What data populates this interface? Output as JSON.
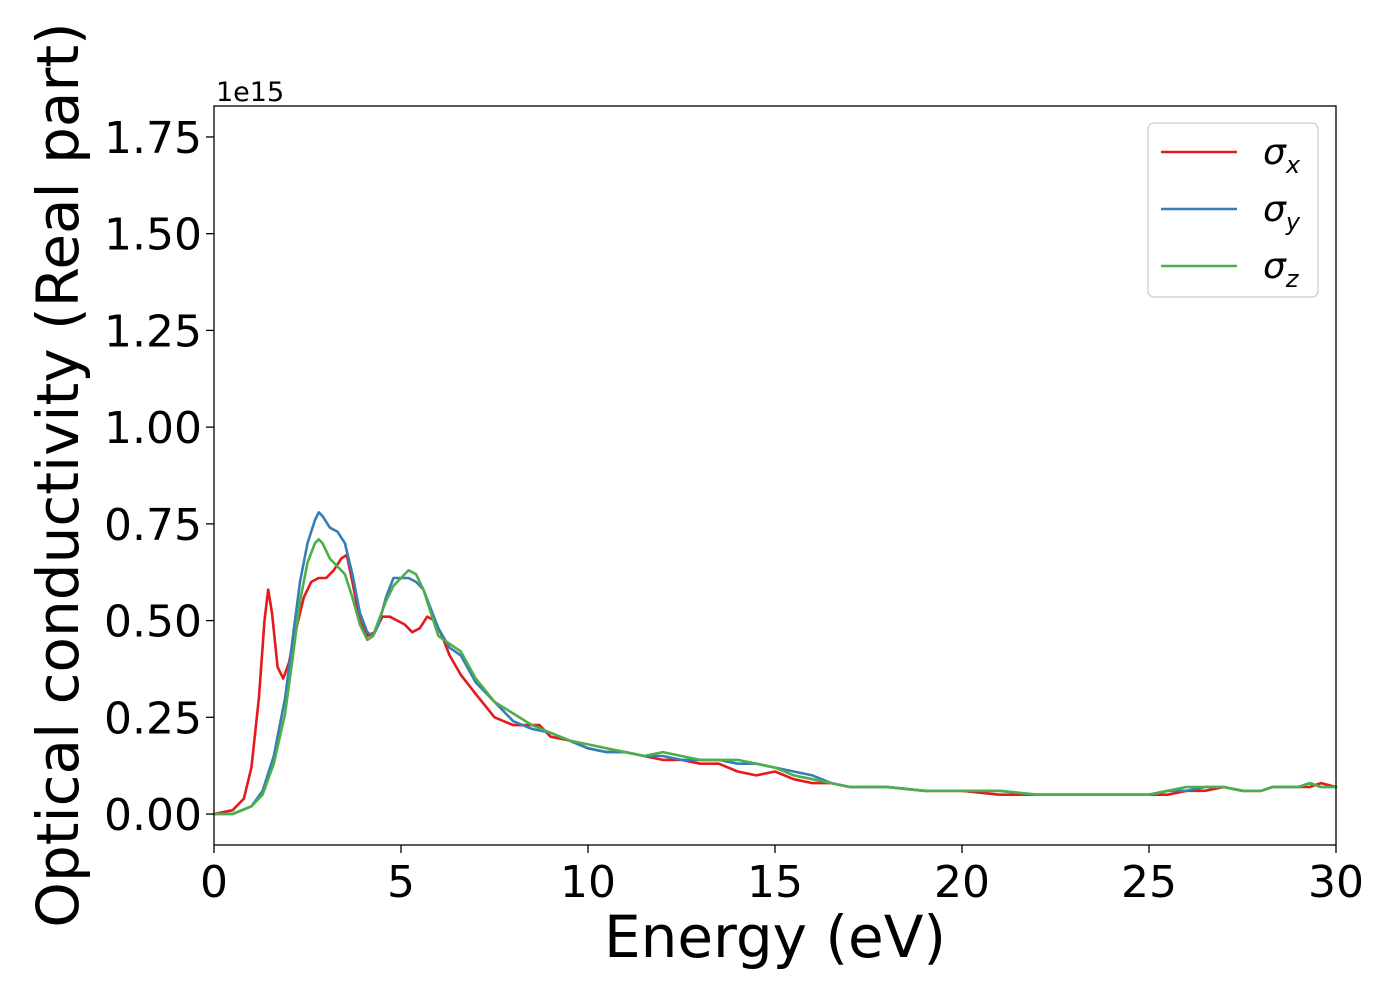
{
  "chart_data": {
    "type": "line",
    "xlabel": "Energy (eV)",
    "ylabel": "Optical conductivity (Real part)",
    "y_offset_text": "1e15",
    "xlim": [
      0,
      30
    ],
    "ylim": [
      -0.08,
      1.83
    ],
    "x_ticks": [
      0,
      5,
      10,
      15,
      20,
      25,
      30
    ],
    "x_tick_labels": [
      "0",
      "5",
      "10",
      "15",
      "20",
      "25",
      "30"
    ],
    "y_ticks": [
      0.0,
      0.25,
      0.5,
      0.75,
      1.0,
      1.25,
      1.5,
      1.75
    ],
    "y_tick_labels": [
      "0.00",
      "0.25",
      "0.50",
      "0.75",
      "1.00",
      "1.25",
      "1.50",
      "1.75"
    ],
    "grid": false,
    "legend_position": "top-right",
    "series": [
      {
        "name": "σx",
        "symbol": "σ",
        "subscript": "x",
        "color": "#e41a1c",
        "x": [
          0,
          0.5,
          0.8,
          1.0,
          1.2,
          1.35,
          1.45,
          1.55,
          1.7,
          1.85,
          2.0,
          2.2,
          2.4,
          2.6,
          2.8,
          3.0,
          3.2,
          3.4,
          3.55,
          3.7,
          3.9,
          4.1,
          4.3,
          4.5,
          4.7,
          4.9,
          5.1,
          5.3,
          5.5,
          5.7,
          5.9,
          6.1,
          6.3,
          6.6,
          7.0,
          7.5,
          8.0,
          8.4,
          8.7,
          9.0,
          9.5,
          10.0,
          10.5,
          11.0,
          11.5,
          12.0,
          12.5,
          13.0,
          13.5,
          14.0,
          14.5,
          15.0,
          15.5,
          16.0,
          16.5,
          17.0,
          18.0,
          19.0,
          20.0,
          21.0,
          22.0,
          23.0,
          24.0,
          24.5,
          25.0,
          25.5,
          26.0,
          26.5,
          27.0,
          27.5,
          28.0,
          28.3,
          28.6,
          29.0,
          29.3,
          29.6,
          30.0
        ],
        "values": [
          0.0,
          0.01,
          0.04,
          0.12,
          0.3,
          0.5,
          0.58,
          0.52,
          0.38,
          0.35,
          0.39,
          0.48,
          0.56,
          0.6,
          0.61,
          0.61,
          0.63,
          0.66,
          0.67,
          0.6,
          0.5,
          0.46,
          0.47,
          0.51,
          0.51,
          0.5,
          0.49,
          0.47,
          0.48,
          0.51,
          0.5,
          0.46,
          0.41,
          0.36,
          0.31,
          0.25,
          0.23,
          0.23,
          0.23,
          0.2,
          0.19,
          0.17,
          0.16,
          0.16,
          0.15,
          0.14,
          0.14,
          0.13,
          0.13,
          0.11,
          0.1,
          0.11,
          0.09,
          0.08,
          0.08,
          0.07,
          0.07,
          0.06,
          0.06,
          0.05,
          0.05,
          0.05,
          0.05,
          0.05,
          0.05,
          0.05,
          0.06,
          0.06,
          0.07,
          0.06,
          0.06,
          0.07,
          0.07,
          0.07,
          0.07,
          0.08,
          0.07
        ]
      },
      {
        "name": "σy",
        "symbol": "σ",
        "subscript": "y",
        "color": "#377eb8",
        "x": [
          0,
          0.5,
          1.0,
          1.3,
          1.6,
          1.9,
          2.1,
          2.3,
          2.5,
          2.7,
          2.8,
          2.9,
          3.1,
          3.3,
          3.5,
          3.7,
          3.9,
          4.1,
          4.25,
          4.4,
          4.6,
          4.8,
          5.0,
          5.2,
          5.4,
          5.6,
          5.8,
          6.0,
          6.3,
          6.6,
          7.0,
          7.5,
          8.0,
          8.5,
          9.0,
          9.5,
          10.0,
          10.5,
          11.0,
          11.5,
          12.0,
          12.5,
          13.0,
          13.5,
          14.0,
          14.5,
          15.0,
          15.5,
          16.0,
          16.5,
          17.0,
          18.0,
          19.0,
          20.0,
          21.0,
          22.0,
          23.0,
          24.0,
          24.5,
          25.0,
          25.5,
          26.0,
          26.5,
          27.0,
          27.5,
          28.0,
          28.3,
          28.6,
          29.0,
          29.3,
          29.6,
          30.0
        ],
        "values": [
          0.0,
          0.0,
          0.02,
          0.06,
          0.15,
          0.3,
          0.45,
          0.6,
          0.7,
          0.76,
          0.78,
          0.77,
          0.74,
          0.73,
          0.7,
          0.62,
          0.52,
          0.47,
          0.46,
          0.49,
          0.56,
          0.61,
          0.61,
          0.61,
          0.6,
          0.58,
          0.53,
          0.48,
          0.43,
          0.41,
          0.34,
          0.29,
          0.24,
          0.22,
          0.21,
          0.19,
          0.17,
          0.16,
          0.16,
          0.15,
          0.15,
          0.14,
          0.14,
          0.14,
          0.13,
          0.13,
          0.12,
          0.11,
          0.1,
          0.08,
          0.07,
          0.07,
          0.06,
          0.06,
          0.06,
          0.05,
          0.05,
          0.05,
          0.05,
          0.05,
          0.06,
          0.06,
          0.07,
          0.07,
          0.06,
          0.06,
          0.07,
          0.07,
          0.07,
          0.08,
          0.07,
          0.07
        ]
      },
      {
        "name": "σz",
        "symbol": "σ",
        "subscript": "z",
        "color": "#4daf4a",
        "x": [
          0,
          0.5,
          1.0,
          1.3,
          1.6,
          1.9,
          2.1,
          2.3,
          2.5,
          2.7,
          2.8,
          2.9,
          3.1,
          3.3,
          3.5,
          3.7,
          3.9,
          4.1,
          4.25,
          4.4,
          4.6,
          4.8,
          5.0,
          5.2,
          5.4,
          5.6,
          5.8,
          6.0,
          6.3,
          6.6,
          7.0,
          7.5,
          8.0,
          8.5,
          9.0,
          9.5,
          10.0,
          10.5,
          11.0,
          11.5,
          12.0,
          12.5,
          13.0,
          13.5,
          14.0,
          14.5,
          15.0,
          15.5,
          16.0,
          16.5,
          17.0,
          18.0,
          19.0,
          20.0,
          21.0,
          22.0,
          23.0,
          24.0,
          24.5,
          25.0,
          25.5,
          26.0,
          26.5,
          27.0,
          27.5,
          28.0,
          28.3,
          28.6,
          29.0,
          29.3,
          29.6,
          30.0
        ],
        "values": [
          0.0,
          0.0,
          0.02,
          0.05,
          0.13,
          0.26,
          0.4,
          0.55,
          0.65,
          0.7,
          0.71,
          0.7,
          0.66,
          0.64,
          0.62,
          0.56,
          0.49,
          0.45,
          0.46,
          0.5,
          0.55,
          0.59,
          0.61,
          0.63,
          0.62,
          0.58,
          0.52,
          0.46,
          0.44,
          0.42,
          0.35,
          0.29,
          0.26,
          0.23,
          0.21,
          0.19,
          0.18,
          0.17,
          0.16,
          0.15,
          0.16,
          0.15,
          0.14,
          0.14,
          0.14,
          0.13,
          0.12,
          0.1,
          0.09,
          0.08,
          0.07,
          0.07,
          0.06,
          0.06,
          0.06,
          0.05,
          0.05,
          0.05,
          0.05,
          0.05,
          0.06,
          0.07,
          0.07,
          0.07,
          0.06,
          0.06,
          0.07,
          0.07,
          0.07,
          0.08,
          0.07,
          0.07
        ]
      }
    ]
  }
}
